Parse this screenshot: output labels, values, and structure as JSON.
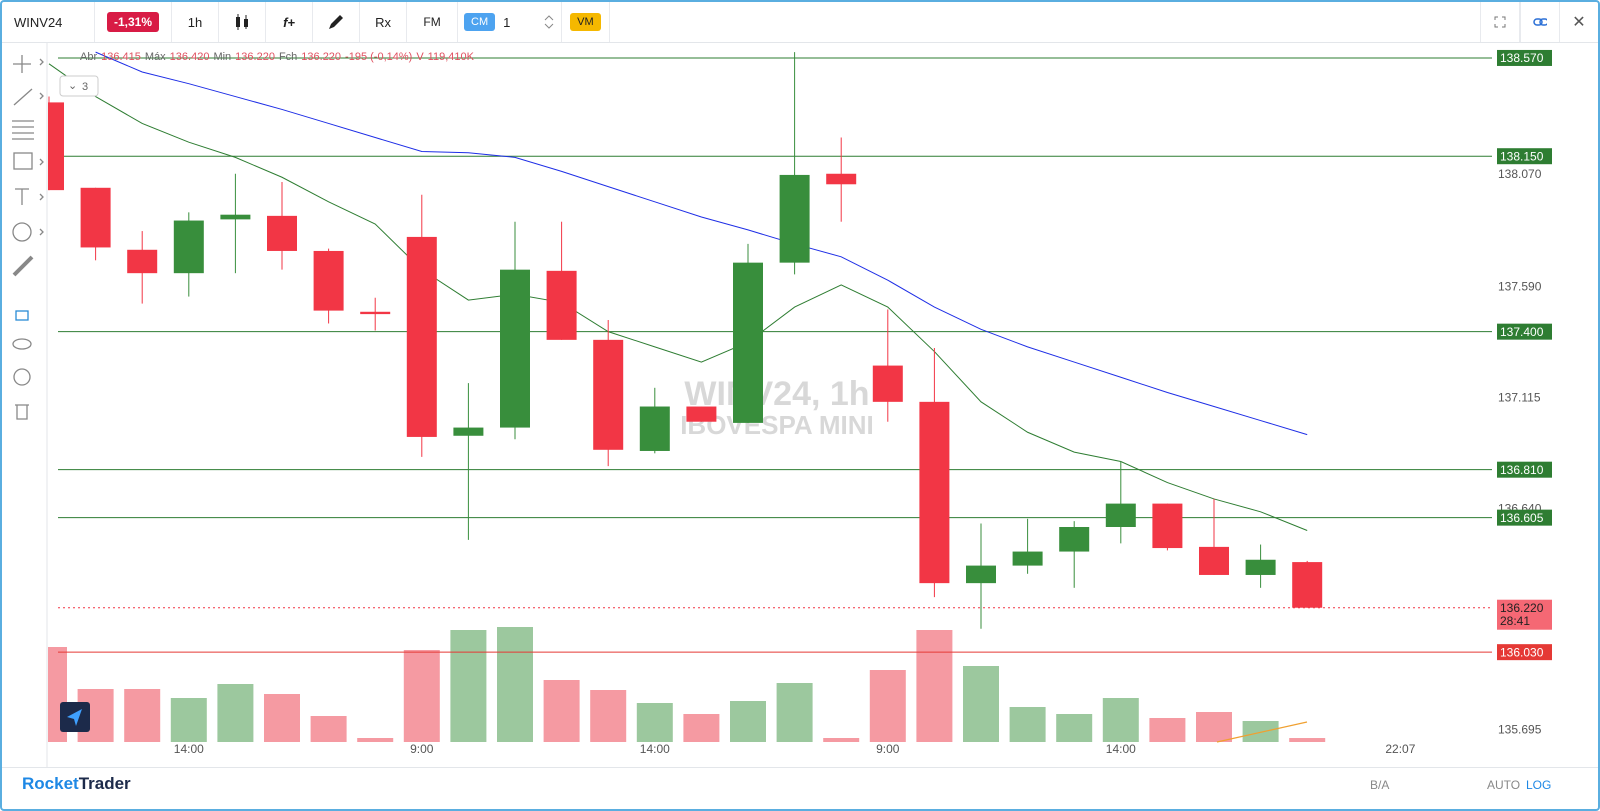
{
  "toolbar": {
    "symbol": "WINV24",
    "change": "-1,31%",
    "interval": "1h",
    "f_button": "f+",
    "rx_button": "Rx",
    "fm_button": "FM",
    "cm_button": "CM",
    "quantity": "1",
    "vm_button": "VM"
  },
  "footer": {
    "brand_a": "Rocket",
    "brand_b": "Trader",
    "ba": "B/A",
    "auto": "AUTO",
    "log": "LOG"
  },
  "chart_data": {
    "type": "candlestick",
    "ohlc_legend": [
      "Abr",
      "136.415",
      "Máx",
      "136.420",
      "Min",
      "136.220",
      "Fch",
      "136.220",
      "-195 (-0,14%)",
      "V",
      "119,410K"
    ],
    "indicator_count": "3",
    "watermark": [
      "WINV24, 1h",
      "IBOVESPA MINI"
    ],
    "categories": [
      null,
      null,
      null,
      "14:00",
      null,
      null,
      null,
      null,
      "9:00",
      null,
      null,
      null,
      null,
      "14:00",
      null,
      null,
      null,
      null,
      "9:00",
      null,
      null,
      null,
      null,
      "14:00",
      null,
      null,
      null,
      null
    ],
    "time_label": "22:07",
    "candles": {
      "up_color": "#388e3c",
      "down_color": "#f23645",
      "open": [
        138.38,
        138.015,
        137.75,
        137.65,
        137.88,
        137.895,
        137.745,
        137.485,
        137.805,
        136.955,
        136.99,
        137.66,
        137.365,
        136.89,
        137.08,
        137.01,
        137.695,
        138.075,
        137.255,
        137.1,
        136.325,
        136.4,
        136.46,
        136.565,
        136.665,
        136.48,
        136.36,
        136.415
      ],
      "high": [
        138.405,
        138.015,
        137.83,
        137.91,
        138.075,
        138.04,
        137.755,
        137.545,
        137.985,
        137.18,
        137.87,
        137.87,
        137.45,
        137.16,
        137.08,
        137.775,
        138.595,
        138.23,
        137.495,
        137.33,
        136.58,
        136.6,
        136.59,
        136.845,
        136.665,
        136.685,
        136.49,
        136.42
      ],
      "low": [
        138.005,
        137.705,
        137.52,
        137.55,
        137.65,
        137.665,
        137.435,
        137.405,
        136.865,
        136.51,
        136.94,
        137.365,
        136.825,
        136.88,
        137.015,
        137.01,
        137.645,
        137.87,
        137.015,
        136.265,
        136.13,
        136.365,
        136.305,
        136.495,
        136.465,
        136.36,
        136.305,
        136.22
      ],
      "close": [
        138.005,
        137.76,
        137.65,
        137.875,
        137.9,
        137.745,
        137.49,
        137.475,
        136.95,
        136.99,
        137.665,
        137.365,
        136.895,
        137.08,
        137.015,
        137.695,
        138.07,
        138.03,
        137.1,
        136.325,
        136.4,
        136.46,
        136.565,
        136.665,
        136.475,
        136.36,
        136.425,
        136.22
      ]
    },
    "volume": {
      "up_color": "#9cc89e",
      "down_color": "#f59aa2",
      "values": [
        2850000,
        1590000,
        1590000,
        1320000,
        1740000,
        1440000,
        780000,
        120000,
        2760000,
        3360000,
        3450000,
        1860000,
        1560000,
        1170000,
        840000,
        1230000,
        1770000,
        120000,
        2160000,
        3360000,
        2280000,
        1050000,
        840000,
        1320000,
        720000,
        900000,
        630000,
        119410
      ]
    },
    "lines": [
      {
        "color": "#2e7d32",
        "values": [
          138.545,
          138.405,
          138.29,
          138.21,
          138.145,
          138.06,
          137.955,
          137.86,
          137.665,
          137.535,
          137.56,
          137.525,
          137.4,
          137.335,
          137.27,
          137.355,
          137.505,
          137.6,
          137.505,
          137.315,
          137.1,
          136.97,
          136.885,
          136.845,
          136.755,
          136.685,
          136.63,
          136.55
        ]
      },
      {
        "color": "#1e2ee6",
        "values": [
          null,
          138.595,
          138.51,
          138.46,
          138.405,
          138.35,
          138.29,
          138.23,
          138.17,
          138.165,
          138.145,
          138.085,
          138.02,
          137.955,
          137.89,
          137.835,
          137.775,
          137.72,
          137.62,
          137.505,
          137.41,
          137.335,
          137.27,
          137.205,
          137.14,
          137.08,
          137.02,
          136.96
        ]
      }
    ],
    "ylim": [
      135.569,
      138.604
    ],
    "yticks": [
      {
        "value": 138.07,
        "label": "138.070"
      },
      {
        "value": 137.59,
        "label": "137.590"
      },
      137.115,
      {
        "value": 136.64,
        "label": "136.640"
      },
      135.695
    ],
    "levels": [
      {
        "value": 138.57,
        "label": "138.570",
        "color": "#2e7d32"
      },
      {
        "value": 138.15,
        "label": "138.150",
        "color": "#2e7d32"
      },
      {
        "value": 137.4,
        "label": "137.400",
        "color": "#2e7d32"
      },
      {
        "value": 136.81,
        "label": "136.810",
        "color": "#2e7d32"
      },
      136.605,
      {
        "value": 136.03,
        "label": "136.030",
        "color": "#e53935"
      }
    ],
    "level_default_color": "#2e7d32",
    "last_price": {
      "value": 136.22,
      "label": "136.220",
      "countdown": "28:41",
      "color": "#f23645"
    }
  }
}
